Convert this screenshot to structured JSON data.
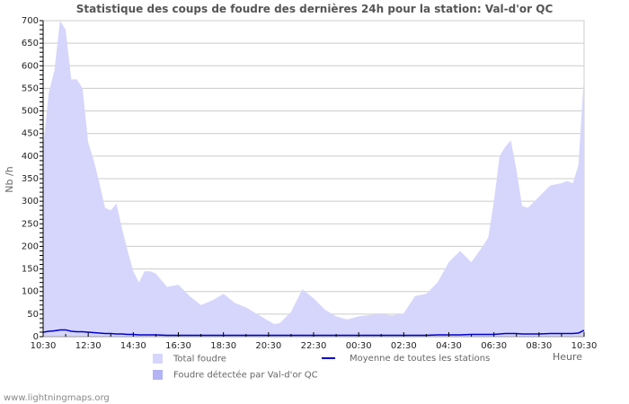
{
  "header": {
    "title": "Statistique des coups de foudre des dernières 24h pour la station: Val-d'or QC"
  },
  "legend": {
    "total": "Total foudre",
    "station": "Foudre détectée par Val-d'or QC",
    "average": "Moyenne de toutes les stations"
  },
  "footer": {
    "site": "www.lightningmaps.org"
  },
  "colors": {
    "total": "#d6d6fc",
    "station": "#b3b3f5",
    "average": "#0000cc",
    "grid": "#cccccc"
  },
  "chart_data": {
    "type": "area",
    "title": "Statistique des coups de foudre des dernières 24h pour la station: Val-d'or QC",
    "xlabel": "Heure",
    "ylabel": "Nb /h",
    "ylim": [
      0,
      700
    ],
    "yticks": [
      0,
      50,
      100,
      150,
      200,
      250,
      300,
      350,
      400,
      450,
      500,
      550,
      600,
      650,
      700
    ],
    "xticks": [
      "10:30",
      "12:30",
      "14:30",
      "16:30",
      "18:30",
      "20:30",
      "22:30",
      "00:30",
      "02:30",
      "04:30",
      "06:30",
      "08:30",
      "10:30"
    ],
    "grid": true,
    "legend_position": "bottom",
    "x_hours": [
      0,
      0.25,
      0.5,
      0.75,
      1.0,
      1.25,
      1.5,
      1.75,
      2.0,
      2.25,
      2.5,
      2.75,
      3.0,
      3.25,
      3.5,
      3.75,
      4.0,
      4.25,
      4.5,
      4.75,
      5.0,
      5.5,
      6.0,
      6.5,
      7.0,
      7.5,
      8.0,
      8.5,
      9.0,
      9.5,
      10.0,
      10.25,
      10.5,
      11.0,
      11.5,
      12.0,
      12.5,
      13.0,
      13.5,
      14.0,
      14.5,
      15.0,
      15.5,
      16.0,
      16.5,
      17.0,
      17.5,
      18.0,
      18.5,
      19.0,
      19.5,
      19.75,
      20.0,
      20.25,
      20.5,
      20.75,
      21.0,
      21.25,
      21.5,
      22.0,
      22.5,
      23.0,
      23.25,
      23.5,
      23.75,
      24.0
    ],
    "series": [
      {
        "name": "Total foudre",
        "values": [
          420,
          540,
          590,
          700,
          680,
          570,
          570,
          550,
          430,
          390,
          340,
          285,
          280,
          295,
          240,
          190,
          145,
          120,
          145,
          145,
          140,
          110,
          115,
          90,
          70,
          80,
          95,
          75,
          65,
          50,
          35,
          28,
          30,
          55,
          105,
          85,
          60,
          45,
          38,
          45,
          48,
          50,
          47,
          52,
          90,
          95,
          120,
          165,
          190,
          165,
          200,
          220,
          300,
          400,
          420,
          435,
          370,
          290,
          285,
          310,
          335,
          340,
          345,
          340,
          380,
          580
        ]
      },
      {
        "name": "Foudre détectée par Val-d'or QC",
        "values": []
      },
      {
        "name": "Moyenne de toutes les stations",
        "values": [
          10,
          12,
          13,
          15,
          15,
          12,
          11,
          11,
          10,
          9,
          8,
          7,
          7,
          6,
          6,
          5,
          5,
          4,
          4,
          4,
          4,
          3,
          3,
          3,
          3,
          3,
          3,
          3,
          3,
          3,
          3,
          3,
          3,
          3,
          3,
          3,
          3,
          3,
          3,
          3,
          3,
          3,
          3,
          3,
          3,
          3,
          4,
          4,
          4,
          5,
          5,
          5,
          5,
          6,
          7,
          7,
          7,
          6,
          6,
          6,
          7,
          7,
          7,
          7,
          8,
          14
        ]
      }
    ]
  }
}
